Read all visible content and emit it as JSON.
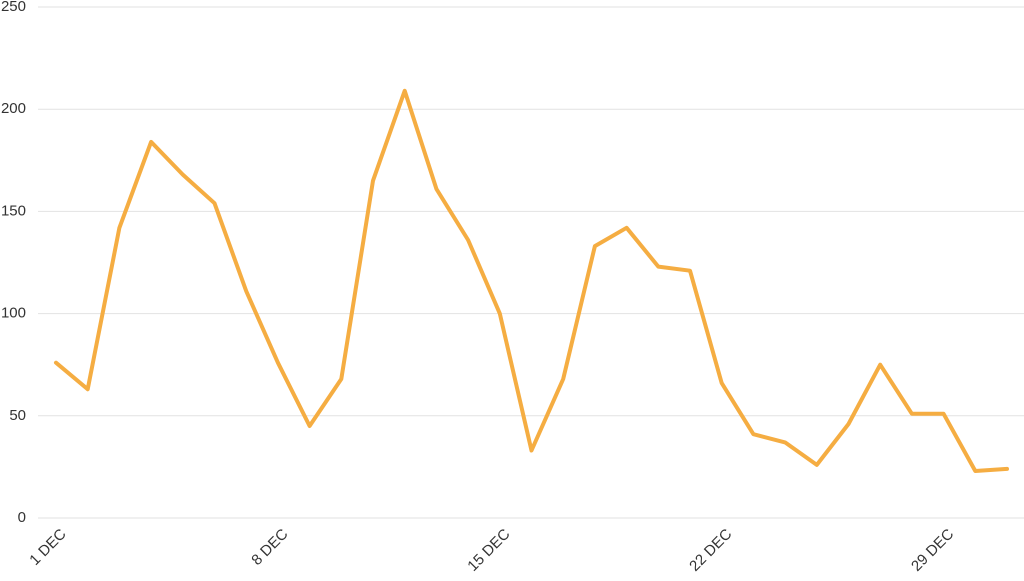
{
  "chart_data": {
    "type": "line",
    "categories": [
      "1 DEC",
      null,
      null,
      null,
      null,
      null,
      null,
      "8 DEC",
      null,
      null,
      null,
      null,
      null,
      null,
      "15 DEC",
      null,
      null,
      null,
      null,
      null,
      null,
      "22 DEC",
      null,
      null,
      null,
      null,
      null,
      null,
      "29 DEC",
      null,
      null
    ],
    "values": [
      76,
      63,
      142,
      184,
      168,
      154,
      111,
      76,
      45,
      68,
      165,
      209,
      161,
      136,
      100,
      33,
      68,
      133,
      142,
      123,
      121,
      66,
      41,
      37,
      26,
      46,
      75,
      51,
      51,
      23,
      24
    ],
    "color": "#f5ad42",
    "ylim": [
      0,
      250
    ],
    "yticks": [
      0,
      50,
      100,
      150,
      200,
      250
    ],
    "grid": true
  }
}
